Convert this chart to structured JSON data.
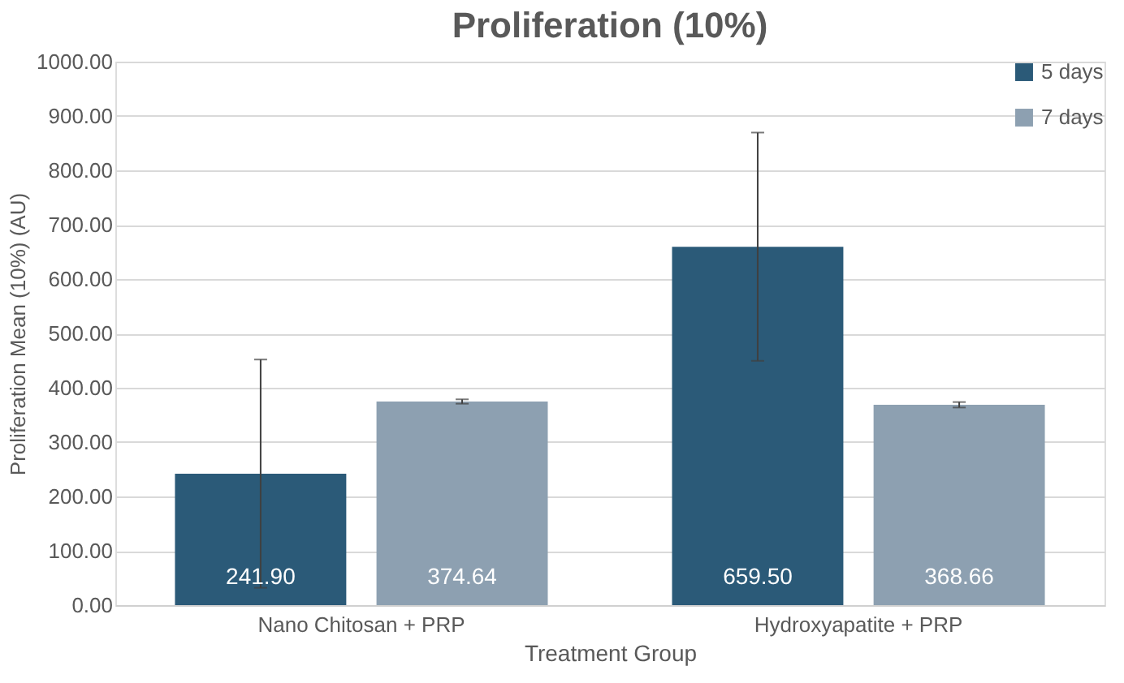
{
  "chart_data": {
    "type": "bar",
    "title": "Proliferation (10%)",
    "xlabel": "Treatment Group",
    "ylabel": "Proliferation Mean (10%) (AU)",
    "categories": [
      "Nano Chitosan + PRP",
      "Hydroxyapatite + PRP"
    ],
    "series": [
      {
        "name": "5 days",
        "color": "#2b5a78",
        "values": [
          241.9,
          659.5
        ],
        "errors": [
          210,
          210
        ],
        "value_labels": [
          "241.90",
          "659.50"
        ]
      },
      {
        "name": "7 days",
        "color": "#8da0b1",
        "values": [
          374.64,
          368.66
        ],
        "errors": [
          4,
          5
        ],
        "value_labels": [
          "374.64",
          "368.66"
        ]
      }
    ],
    "ylim": [
      0,
      1000
    ],
    "yticks": [
      {
        "value": 0,
        "label": "0.00"
      },
      {
        "value": 100,
        "label": "100.00"
      },
      {
        "value": 200,
        "label": "200.00"
      },
      {
        "value": 300,
        "label": "300.00"
      },
      {
        "value": 400,
        "label": "400.00"
      },
      {
        "value": 500,
        "label": "500.00"
      },
      {
        "value": 600,
        "label": "600.00"
      },
      {
        "value": 700,
        "label": "700.00"
      },
      {
        "value": 800,
        "label": "800.00"
      },
      {
        "value": 900,
        "label": "900.00"
      },
      {
        "value": 1000,
        "label": "1000.00"
      }
    ],
    "grid": "y",
    "legend": "top right"
  }
}
